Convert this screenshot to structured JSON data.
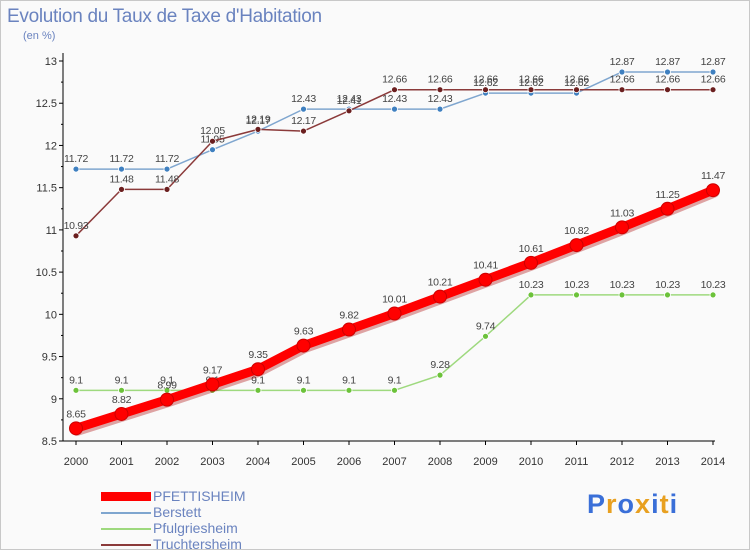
{
  "header": {
    "title": "Evolution du Taux de Taxe d'Habitation",
    "unit": "(en %)"
  },
  "logo": {
    "text": "Proxiti",
    "colors": [
      "#3a6fd8",
      "#e8a020",
      "#3a6fd8",
      "#e8a020",
      "#3a6fd8",
      "#e8a020",
      "#3a6fd8"
    ]
  },
  "chart_data": {
    "type": "line",
    "title": "Evolution du Taux de Taxe d'Habitation",
    "ylabel": "(en %)",
    "xlabel": "",
    "x": [
      "2000",
      "2001",
      "2002",
      "2003",
      "2004",
      "2005",
      "2006",
      "2007",
      "2008",
      "2009",
      "2010",
      "2011",
      "2012",
      "2013",
      "2014"
    ],
    "ylim": [
      8.5,
      13
    ],
    "yticks": [
      "8.5",
      "9",
      "9.5",
      "10",
      "10.5",
      "11",
      "11.5",
      "12",
      "12.5",
      "13"
    ],
    "grid": false,
    "legend_position": "bottom-left",
    "series": [
      {
        "name": "PFETTISHEIM",
        "color": "#ff0000",
        "marker_color": "#ff0000",
        "emphasis": true,
        "values": [
          8.65,
          8.82,
          8.99,
          9.17,
          9.35,
          9.63,
          9.82,
          10.01,
          10.21,
          10.41,
          10.61,
          10.82,
          11.03,
          11.25,
          11.47
        ],
        "labels": [
          "8.65",
          "8.82",
          "8.99",
          "9.17",
          "9.35",
          "9.63",
          "9.82",
          "10.01",
          "10.21",
          "10.41",
          "10.61",
          "10.82",
          "11.03",
          "11.25",
          "11.47"
        ]
      },
      {
        "name": "Berstett",
        "color": "#7fa6cf",
        "marker_color": "#3f80c0",
        "emphasis": false,
        "values": [
          11.72,
          11.72,
          11.72,
          11.95,
          12.17,
          12.43,
          12.43,
          12.43,
          12.43,
          12.62,
          12.62,
          12.62,
          12.87,
          12.87,
          12.87
        ],
        "labels": [
          "11.72",
          "11.72",
          "11.72",
          "11.95",
          "12.17",
          "12.43",
          "12.43",
          "12.43",
          "12.43",
          "12.62",
          "12.62",
          "12.62",
          "12.87",
          "12.87",
          "12.87"
        ]
      },
      {
        "name": "Pfulgriesheim",
        "color": "#9ed97e",
        "marker_color": "#6cc23a",
        "emphasis": false,
        "values": [
          9.1,
          9.1,
          9.1,
          9.1,
          9.1,
          9.1,
          9.1,
          9.1,
          9.28,
          9.74,
          10.23,
          10.23,
          10.23,
          10.23,
          10.23
        ],
        "labels": [
          "9.1",
          "9.1",
          "9.1",
          "9.1",
          "9.1",
          "9.1",
          "9.1",
          "9.1",
          "9.28",
          "9.74",
          "10.23",
          "10.23",
          "10.23",
          "10.23",
          "10.23"
        ]
      },
      {
        "name": "Truchtersheim",
        "color": "#8b3a3a",
        "marker_color": "#6b1f1f",
        "emphasis": false,
        "values": [
          10.93,
          11.48,
          11.48,
          12.05,
          12.19,
          12.17,
          12.41,
          12.66,
          12.66,
          12.66,
          12.66,
          12.66,
          12.66,
          12.66,
          12.66
        ],
        "labels": [
          "10.93",
          "11.48",
          "11.48",
          "12.05",
          "12.19",
          "12.17",
          "12.41",
          "12.66",
          "12.66",
          "12.66",
          "12.66",
          "12.66",
          "12.66",
          "12.66",
          "12.66"
        ]
      }
    ]
  }
}
